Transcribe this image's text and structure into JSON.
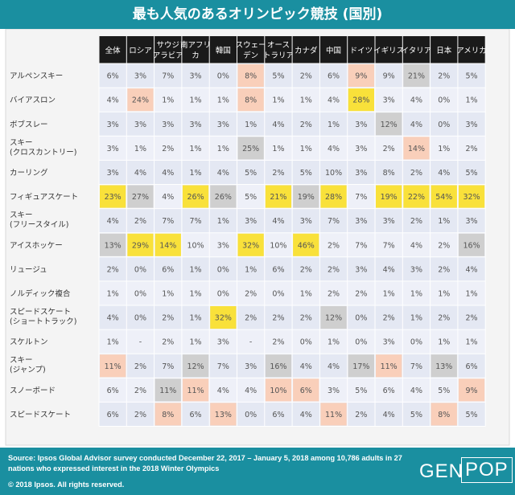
{
  "title": "最も人気のあるオリンピック競技 (国別)",
  "footer": {
    "source": "Source: Ipsos Global Advisor survey conducted December 22, 2017 – January 5, 2018 among 10,786 adults in 27 nations who expressed interest in the 2018 Winter Olympics",
    "copyright": "© 2018 Ipsos. All rights reserved.",
    "logo_left": "GEN",
    "logo_right": "POP"
  },
  "colors": {
    "header": "#1a8fa0",
    "row_even": "#e4e8f3",
    "row_odd": "#eef0f8",
    "yellow": "#f9e13a",
    "gray": "#cfcfcf",
    "peach": "#f9cfba",
    "col_header": "#1a1a1a"
  },
  "chart_data": {
    "type": "table",
    "title": "最も人気のあるオリンピック競技 (国別)",
    "columns": [
      "全体",
      "ロシア",
      "サウジ\nアラビア",
      "南アフリ\nカ",
      "韓国",
      "スウェー\nデン",
      "オース\nトラリア",
      "カナダ",
      "中国",
      "ドイツ",
      "イギリス",
      "イタリア",
      "日本",
      "アメリカ"
    ],
    "rows": [
      {
        "label": "アルペンスキー",
        "values": [
          "6%",
          "3%",
          "7%",
          "3%",
          "0%",
          "8%",
          "5%",
          "2%",
          "6%",
          "9%",
          "9%",
          "21%",
          "2%",
          "5%"
        ],
        "highlights": [
          "",
          "",
          "",
          "",
          "",
          "peach",
          "",
          "",
          "",
          "peach",
          "",
          "gray",
          "",
          ""
        ]
      },
      {
        "label": "バイアスロン",
        "values": [
          "4%",
          "24%",
          "1%",
          "1%",
          "1%",
          "8%",
          "1%",
          "1%",
          "4%",
          "28%",
          "3%",
          "4%",
          "0%",
          "1%"
        ],
        "highlights": [
          "",
          "peach",
          "",
          "",
          "",
          "peach",
          "",
          "",
          "",
          "yellow",
          "",
          "",
          "",
          ""
        ]
      },
      {
        "label": "ボブスレー",
        "values": [
          "3%",
          "3%",
          "3%",
          "3%",
          "3%",
          "1%",
          "4%",
          "2%",
          "1%",
          "3%",
          "12%",
          "4%",
          "0%",
          "3%"
        ],
        "highlights": [
          "",
          "",
          "",
          "",
          "",
          "",
          "",
          "",
          "",
          "",
          "gray",
          "",
          "",
          ""
        ]
      },
      {
        "label": "スキー\n(クロスカントリー)",
        "values": [
          "3%",
          "1%",
          "2%",
          "1%",
          "1%",
          "25%",
          "1%",
          "1%",
          "4%",
          "3%",
          "2%",
          "14%",
          "1%",
          "2%"
        ],
        "highlights": [
          "",
          "",
          "",
          "",
          "",
          "gray",
          "",
          "",
          "",
          "",
          "",
          "peach",
          "",
          ""
        ]
      },
      {
        "label": "カーリング",
        "values": [
          "3%",
          "4%",
          "4%",
          "1%",
          "4%",
          "5%",
          "2%",
          "5%",
          "10%",
          "3%",
          "8%",
          "2%",
          "4%",
          "5%"
        ],
        "highlights": [
          "",
          "",
          "",
          "",
          "",
          "",
          "",
          "",
          "",
          "",
          "",
          "",
          "",
          ""
        ]
      },
      {
        "label": "フィギュアスケート",
        "values": [
          "23%",
          "27%",
          "4%",
          "26%",
          "26%",
          "5%",
          "21%",
          "19%",
          "28%",
          "7%",
          "19%",
          "22%",
          "54%",
          "32%"
        ],
        "highlights": [
          "yellow",
          "gray",
          "",
          "yellow",
          "gray",
          "",
          "yellow",
          "gray",
          "yellow",
          "",
          "yellow",
          "yellow",
          "yellow",
          "yellow"
        ]
      },
      {
        "label": "スキー\n(フリースタイル)",
        "values": [
          "4%",
          "2%",
          "7%",
          "7%",
          "1%",
          "3%",
          "4%",
          "3%",
          "7%",
          "3%",
          "3%",
          "2%",
          "1%",
          "3%"
        ],
        "highlights": [
          "",
          "",
          "",
          "",
          "",
          "",
          "",
          "",
          "",
          "",
          "",
          "",
          "",
          ""
        ]
      },
      {
        "label": "アイスホッケー",
        "values": [
          "13%",
          "29%",
          "14%",
          "10%",
          "3%",
          "32%",
          "10%",
          "46%",
          "2%",
          "7%",
          "7%",
          "4%",
          "2%",
          "16%"
        ],
        "highlights": [
          "gray",
          "yellow",
          "yellow",
          "",
          "",
          "yellow",
          "",
          "yellow",
          "",
          "",
          "",
          "",
          "",
          "gray"
        ]
      },
      {
        "label": "リュージュ",
        "values": [
          "2%",
          "0%",
          "6%",
          "1%",
          "0%",
          "1%",
          "6%",
          "2%",
          "2%",
          "3%",
          "4%",
          "3%",
          "2%",
          "4%"
        ],
        "highlights": [
          "",
          "",
          "",
          "",
          "",
          "",
          "",
          "",
          "",
          "",
          "",
          "",
          "",
          ""
        ]
      },
      {
        "label": "ノルディック複合",
        "values": [
          "1%",
          "0%",
          "1%",
          "1%",
          "0%",
          "2%",
          "0%",
          "1%",
          "2%",
          "2%",
          "1%",
          "1%",
          "1%",
          "1%"
        ],
        "highlights": [
          "",
          "",
          "",
          "",
          "",
          "",
          "",
          "",
          "",
          "",
          "",
          "",
          "",
          ""
        ]
      },
      {
        "label": "スピードスケート\n(ショートトラック)",
        "values": [
          "4%",
          "0%",
          "2%",
          "1%",
          "32%",
          "2%",
          "2%",
          "2%",
          "12%",
          "0%",
          "2%",
          "1%",
          "2%",
          "2%"
        ],
        "highlights": [
          "",
          "",
          "",
          "",
          "yellow",
          "",
          "",
          "",
          "gray",
          "",
          "",
          "",
          "",
          ""
        ]
      },
      {
        "label": "スケルトン",
        "values": [
          "1%",
          "-",
          "2%",
          "1%",
          "3%",
          "-",
          "2%",
          "0%",
          "1%",
          "0%",
          "3%",
          "0%",
          "1%",
          "1%"
        ],
        "highlights": [
          "",
          "",
          "",
          "",
          "",
          "",
          "",
          "",
          "",
          "",
          "",
          "",
          "",
          ""
        ]
      },
      {
        "label": "スキー\n(ジャンプ)",
        "values": [
          "11%",
          "2%",
          "7%",
          "12%",
          "7%",
          "3%",
          "16%",
          "4%",
          "4%",
          "17%",
          "11%",
          "7%",
          "13%",
          "6%"
        ],
        "highlights": [
          "peach",
          "",
          "",
          "gray",
          "",
          "",
          "gray",
          "",
          "",
          "gray",
          "peach",
          "",
          "gray",
          ""
        ]
      },
      {
        "label": "スノーボード",
        "values": [
          "6%",
          "2%",
          "11%",
          "11%",
          "4%",
          "4%",
          "10%",
          "6%",
          "3%",
          "5%",
          "6%",
          "4%",
          "5%",
          "9%"
        ],
        "highlights": [
          "",
          "",
          "gray",
          "peach",
          "",
          "",
          "peach",
          "peach",
          "",
          "",
          "",
          "",
          "",
          "peach"
        ]
      },
      {
        "label": "スピードスケート",
        "values": [
          "6%",
          "2%",
          "8%",
          "6%",
          "13%",
          "0%",
          "6%",
          "4%",
          "11%",
          "2%",
          "4%",
          "5%",
          "8%",
          "5%"
        ],
        "highlights": [
          "",
          "",
          "peach",
          "",
          "peach",
          "",
          "",
          "",
          "peach",
          "",
          "",
          "",
          "peach",
          ""
        ]
      }
    ]
  }
}
